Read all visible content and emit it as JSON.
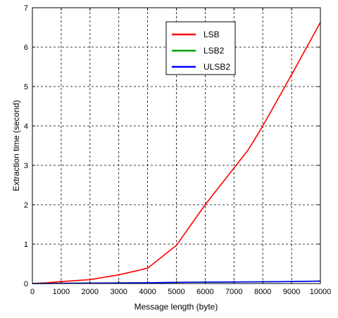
{
  "chart_data": {
    "type": "line",
    "title": "",
    "xlabel": "Message length (byte)",
    "ylabel": "Extraction time (second)",
    "xlim": [
      0,
      10000
    ],
    "ylim": [
      0,
      7
    ],
    "x_ticks": [
      0,
      1000,
      2000,
      3000,
      4000,
      5000,
      6000,
      7000,
      8000,
      9000,
      10000
    ],
    "y_ticks": [
      0,
      1,
      2,
      3,
      4,
      5,
      6,
      7
    ],
    "x_tick_labels": [
      "0",
      "1000",
      "2000",
      "3000",
      "4000",
      "5000",
      "6000",
      "7000",
      "8000",
      "9000",
      "10000"
    ],
    "y_tick_labels": [
      "0",
      "1",
      "2",
      "3",
      "4",
      "5",
      "6",
      "7"
    ],
    "grid": true,
    "legend_position": "top-right",
    "series": [
      {
        "name": "LSB",
        "color": "#ff0000",
        "x": [
          0,
          500,
          1000,
          2000,
          3000,
          4000,
          5000,
          6000,
          7500,
          8000,
          9000,
          10000
        ],
        "y": [
          0,
          0.02,
          0.05,
          0.1,
          0.22,
          0.39,
          0.97,
          2.0,
          3.4,
          4.0,
          5.3,
          6.63
        ]
      },
      {
        "name": "LSB2",
        "color": "#00a000",
        "x": [
          0,
          1000,
          2000,
          3000,
          4000,
          5000,
          6000,
          7000,
          8000,
          9000,
          10000
        ],
        "y": [
          0,
          0.005,
          0.01,
          0.015,
          0.02,
          0.03,
          0.035,
          0.04,
          0.045,
          0.05,
          0.06
        ]
      },
      {
        "name": "ULSB2",
        "color": "#0000ff",
        "x": [
          0,
          1000,
          2000,
          3000,
          4000,
          5000,
          6000,
          7000,
          8000,
          9000,
          10000
        ],
        "y": [
          0,
          0.005,
          0.01,
          0.015,
          0.02,
          0.03,
          0.035,
          0.04,
          0.045,
          0.05,
          0.06
        ]
      }
    ]
  }
}
